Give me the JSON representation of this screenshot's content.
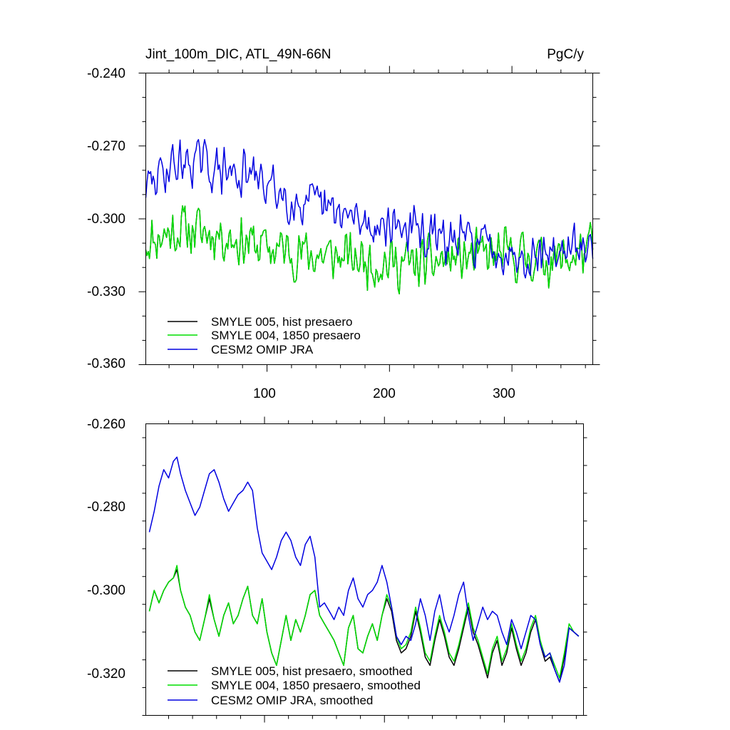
{
  "chart_data": [
    {
      "type": "line",
      "title": "Jint_100m_DIC, ATL_49N-66N",
      "units": "PgC/y",
      "xlabel": "",
      "ylabel": "",
      "xlim": [
        1,
        366
      ],
      "ylim": [
        -0.36,
        -0.24
      ],
      "xticks": [
        100,
        200,
        300
      ],
      "xtick_labels": [
        "100",
        "200",
        "300"
      ],
      "yticks": [
        -0.36,
        -0.33,
        -0.3,
        -0.27,
        -0.24
      ],
      "ytick_labels": [
        "-0.360",
        "-0.330",
        "-0.300",
        "-0.270",
        "-0.240"
      ],
      "grid": false,
      "legend_position": "bottom-left",
      "series": [
        {
          "name": "SMYLE 005, hist presaero",
          "color": "#000000",
          "knots": [
            [
              1,
              -0.309
            ],
            [
              30,
              -0.304
            ],
            [
              60,
              -0.306
            ],
            [
              100,
              -0.312
            ],
            [
              140,
              -0.315
            ],
            [
              180,
              -0.317
            ],
            [
              220,
              -0.319
            ],
            [
              260,
              -0.316
            ],
            [
              300,
              -0.315
            ],
            [
              340,
              -0.317
            ],
            [
              366,
              -0.312
            ]
          ],
          "amp": 0.0105,
          "seed": 11
        },
        {
          "name": "SMYLE 004, 1850 presaero",
          "color": "#00dd00",
          "knots": [
            [
              1,
              -0.309
            ],
            [
              30,
              -0.304
            ],
            [
              60,
              -0.306
            ],
            [
              100,
              -0.312
            ],
            [
              140,
              -0.315
            ],
            [
              180,
              -0.317
            ],
            [
              220,
              -0.319
            ],
            [
              260,
              -0.316
            ],
            [
              300,
              -0.315
            ],
            [
              340,
              -0.317
            ],
            [
              366,
              -0.312
            ]
          ],
          "amp": 0.0105,
          "seed": 11
        },
        {
          "name": "CESM2 OMIP JRA",
          "color": "#0000e0",
          "knots": [
            [
              1,
              -0.288
            ],
            [
              20,
              -0.278
            ],
            [
              40,
              -0.276
            ],
            [
              60,
              -0.28
            ],
            [
              90,
              -0.283
            ],
            [
              120,
              -0.292
            ],
            [
              150,
              -0.297
            ],
            [
              180,
              -0.302
            ],
            [
              210,
              -0.303
            ],
            [
              240,
              -0.309
            ],
            [
              270,
              -0.309
            ],
            [
              300,
              -0.314
            ],
            [
              330,
              -0.314
            ],
            [
              366,
              -0.312
            ]
          ],
          "amp": 0.0095,
          "seed": 29
        }
      ]
    },
    {
      "type": "line",
      "title": "",
      "xlabel": "",
      "ylabel": "",
      "xlim": [
        1,
        366
      ],
      "ylim": [
        -0.33,
        -0.26
      ],
      "xticks": [
        100,
        200,
        300
      ],
      "yticks": [
        -0.32,
        -0.3,
        -0.28,
        -0.26
      ],
      "ytick_labels": [
        "-0.320",
        "-0.300",
        "-0.280",
        "-0.260"
      ],
      "grid": false,
      "legend_position": "bottom-left",
      "series": [
        {
          "name": "SMYLE 005, hist presaero, smoothed",
          "color": "#000000",
          "x": [
            4,
            8,
            12,
            16,
            20,
            24,
            27,
            30,
            34,
            38,
            42,
            46,
            50,
            54,
            58,
            62,
            66,
            70,
            74,
            78,
            82,
            86,
            90,
            94,
            98,
            102,
            106,
            110,
            114,
            118,
            122,
            126,
            130,
            134,
            138,
            142,
            146,
            150,
            154,
            158,
            162,
            166,
            170,
            174,
            178,
            182,
            186,
            190,
            194,
            198,
            202,
            206,
            210,
            214,
            218,
            222,
            226,
            230,
            234,
            238,
            242,
            246,
            250,
            254,
            258,
            262,
            266,
            270,
            274,
            278,
            282,
            286,
            290,
            294,
            298,
            302,
            306,
            310,
            314,
            318,
            322,
            326,
            330,
            334,
            338,
            342,
            346,
            350,
            354,
            358,
            362
          ],
          "y": [
            -0.305,
            -0.3,
            -0.303,
            -0.3,
            -0.298,
            -0.297,
            -0.295,
            -0.3,
            -0.304,
            -0.306,
            -0.31,
            -0.312,
            -0.307,
            -0.302,
            -0.307,
            -0.311,
            -0.306,
            -0.303,
            -0.308,
            -0.306,
            -0.302,
            -0.299,
            -0.306,
            -0.308,
            -0.302,
            -0.31,
            -0.315,
            -0.318,
            -0.312,
            -0.306,
            -0.312,
            -0.307,
            -0.31,
            -0.306,
            -0.301,
            -0.3,
            -0.306,
            -0.308,
            -0.31,
            -0.312,
            -0.315,
            -0.318,
            -0.309,
            -0.306,
            -0.314,
            -0.315,
            -0.311,
            -0.308,
            -0.312,
            -0.306,
            -0.302,
            -0.305,
            -0.312,
            -0.315,
            -0.314,
            -0.311,
            -0.305,
            -0.31,
            -0.316,
            -0.318,
            -0.312,
            -0.307,
            -0.311,
            -0.316,
            -0.318,
            -0.314,
            -0.309,
            -0.304,
            -0.31,
            -0.313,
            -0.317,
            -0.321,
            -0.315,
            -0.312,
            -0.318,
            -0.315,
            -0.309,
            -0.314,
            -0.318,
            -0.315,
            -0.31,
            -0.307,
            -0.313,
            -0.317,
            -0.316,
            -0.319,
            -0.322,
            -0.316,
            -0.309,
            -0.31,
            -0.311
          ]
        },
        {
          "name": "SMYLE 004, 1850 presaero, smoothed",
          "color": "#00dd00",
          "x": [
            4,
            8,
            12,
            16,
            20,
            24,
            27,
            30,
            34,
            38,
            42,
            46,
            50,
            54,
            58,
            62,
            66,
            70,
            74,
            78,
            82,
            86,
            90,
            94,
            98,
            102,
            106,
            110,
            114,
            118,
            122,
            126,
            130,
            134,
            138,
            142,
            146,
            150,
            154,
            158,
            162,
            166,
            170,
            174,
            178,
            182,
            186,
            190,
            194,
            198,
            202,
            206,
            210,
            214,
            218,
            222,
            226,
            230,
            234,
            238,
            242,
            246,
            250,
            254,
            258,
            262,
            266,
            270,
            274,
            278,
            282,
            286,
            290,
            294,
            298,
            302,
            306,
            310,
            314,
            318,
            322,
            326,
            330,
            334,
            338,
            342,
            346,
            350,
            354,
            358,
            362
          ],
          "y": [
            -0.305,
            -0.3,
            -0.303,
            -0.3,
            -0.298,
            -0.297,
            -0.294,
            -0.3,
            -0.304,
            -0.306,
            -0.31,
            -0.312,
            -0.307,
            -0.301,
            -0.307,
            -0.311,
            -0.306,
            -0.303,
            -0.308,
            -0.306,
            -0.302,
            -0.299,
            -0.306,
            -0.308,
            -0.302,
            -0.31,
            -0.315,
            -0.318,
            -0.312,
            -0.306,
            -0.312,
            -0.307,
            -0.31,
            -0.306,
            -0.301,
            -0.3,
            -0.306,
            -0.308,
            -0.31,
            -0.312,
            -0.315,
            -0.318,
            -0.309,
            -0.306,
            -0.314,
            -0.315,
            -0.311,
            -0.308,
            -0.312,
            -0.306,
            -0.301,
            -0.304,
            -0.311,
            -0.314,
            -0.313,
            -0.31,
            -0.304,
            -0.309,
            -0.315,
            -0.317,
            -0.311,
            -0.306,
            -0.31,
            -0.315,
            -0.317,
            -0.313,
            -0.308,
            -0.303,
            -0.309,
            -0.312,
            -0.316,
            -0.32,
            -0.314,
            -0.311,
            -0.317,
            -0.314,
            -0.308,
            -0.313,
            -0.317,
            -0.314,
            -0.309,
            -0.306,
            -0.312,
            -0.316,
            -0.315,
            -0.318,
            -0.321,
            -0.315,
            -0.308,
            -0.31,
            -0.311
          ]
        },
        {
          "name": "CESM2 OMIP JRA, smoothed",
          "color": "#0000e0",
          "x": [
            4,
            8,
            12,
            16,
            20,
            24,
            27,
            30,
            34,
            38,
            42,
            46,
            50,
            54,
            58,
            62,
            66,
            70,
            74,
            78,
            82,
            86,
            90,
            94,
            98,
            102,
            106,
            110,
            114,
            118,
            122,
            126,
            130,
            134,
            138,
            142,
            146,
            150,
            154,
            158,
            162,
            166,
            170,
            174,
            178,
            182,
            186,
            190,
            194,
            198,
            202,
            206,
            210,
            214,
            218,
            222,
            226,
            230,
            234,
            238,
            242,
            246,
            250,
            254,
            258,
            262,
            266,
            270,
            274,
            278,
            282,
            286,
            290,
            294,
            298,
            302,
            306,
            310,
            314,
            318,
            322,
            326,
            330,
            334,
            338,
            342,
            346,
            350,
            354,
            358,
            362
          ],
          "y": [
            -0.286,
            -0.281,
            -0.275,
            -0.271,
            -0.273,
            -0.269,
            -0.268,
            -0.272,
            -0.276,
            -0.279,
            -0.282,
            -0.28,
            -0.276,
            -0.272,
            -0.271,
            -0.274,
            -0.278,
            -0.281,
            -0.279,
            -0.277,
            -0.276,
            -0.274,
            -0.276,
            -0.285,
            -0.291,
            -0.293,
            -0.295,
            -0.292,
            -0.288,
            -0.286,
            -0.288,
            -0.292,
            -0.294,
            -0.289,
            -0.287,
            -0.292,
            -0.304,
            -0.303,
            -0.305,
            -0.307,
            -0.304,
            -0.306,
            -0.3,
            -0.297,
            -0.302,
            -0.304,
            -0.301,
            -0.3,
            -0.298,
            -0.294,
            -0.298,
            -0.304,
            -0.311,
            -0.313,
            -0.311,
            -0.312,
            -0.308,
            -0.302,
            -0.306,
            -0.312,
            -0.305,
            -0.301,
            -0.307,
            -0.31,
            -0.306,
            -0.301,
            -0.298,
            -0.306,
            -0.312,
            -0.308,
            -0.304,
            -0.307,
            -0.305,
            -0.306,
            -0.31,
            -0.313,
            -0.307,
            -0.31,
            -0.314,
            -0.31,
            -0.306,
            -0.307,
            -0.313,
            -0.316,
            -0.315,
            -0.319,
            -0.322,
            -0.318,
            -0.309,
            -0.31,
            -0.311
          ]
        }
      ]
    }
  ]
}
